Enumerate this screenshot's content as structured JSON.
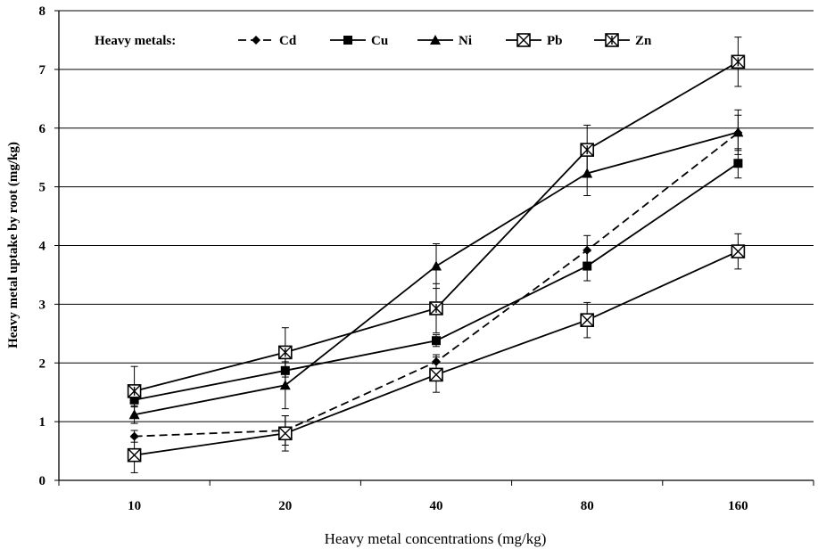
{
  "chart_data": {
    "type": "line",
    "categories": [
      "10",
      "20",
      "40",
      "80",
      "160"
    ],
    "ylim": [
      0,
      8
    ],
    "yticks": [
      0,
      1,
      2,
      3,
      4,
      5,
      6,
      7,
      8
    ],
    "grid": "horizontal",
    "xlabel": "Heavy metal concentrations (mg/kg)",
    "ylabel": "Heavy metal uptake by root (mg/kg)",
    "legend_title": "Heavy metals:",
    "legend_position": "top-left",
    "series": [
      {
        "name": "Cd",
        "marker": "diamond",
        "dash": "dashed",
        "values": [
          0.75,
          0.85,
          2.02,
          3.92,
          5.92
        ],
        "errors": [
          0.1,
          0.25,
          0.12,
          0.25,
          0.3
        ]
      },
      {
        "name": "Cu",
        "marker": "square",
        "dash": "solid",
        "values": [
          1.37,
          1.87,
          2.38,
          3.65,
          5.4
        ],
        "errors": [
          0.12,
          0.3,
          0.1,
          0.25,
          0.25
        ]
      },
      {
        "name": "Ni",
        "marker": "triangle",
        "dash": "solid",
        "values": [
          1.12,
          1.62,
          3.65,
          5.23,
          5.93
        ],
        "errors": [
          0.15,
          0.4,
          0.38,
          0.38,
          0.38
        ]
      },
      {
        "name": "Pb",
        "marker": "boxed-x",
        "dash": "solid",
        "values": [
          0.43,
          0.8,
          1.8,
          2.73,
          3.9
        ],
        "errors": [
          0.3,
          0.3,
          0.3,
          0.3,
          0.3
        ]
      },
      {
        "name": "Zn",
        "marker": "boxed-star",
        "dash": "solid",
        "values": [
          1.52,
          2.18,
          2.93,
          5.63,
          7.13
        ],
        "errors": [
          0.42,
          0.42,
          0.42,
          0.42,
          0.42
        ]
      }
    ]
  }
}
